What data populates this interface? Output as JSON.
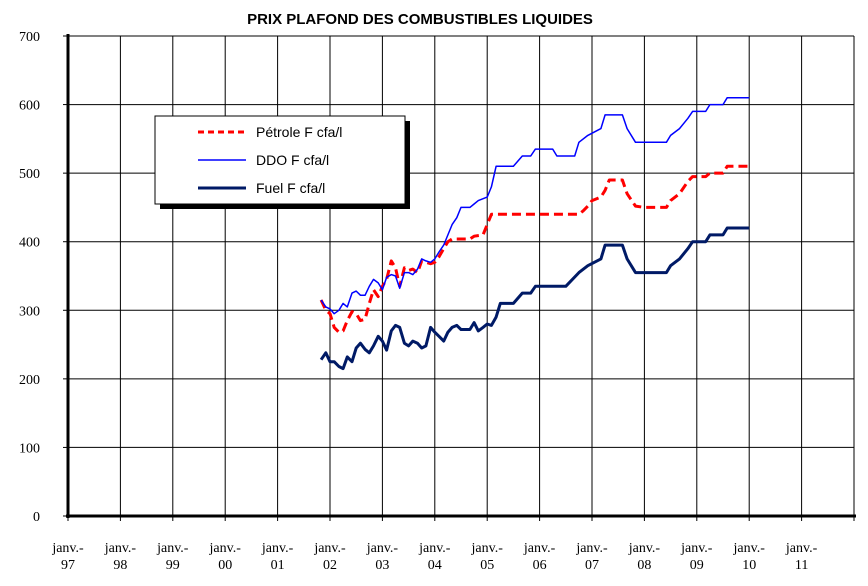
{
  "chart_data": {
    "type": "line",
    "title": "PRIX PLAFOND DES COMBUSTIBLES LIQUIDES",
    "xlabel": "",
    "ylabel": "",
    "ylim": [
      0,
      700
    ],
    "xlim": [
      1997.0,
      2012.0
    ],
    "yticks": [
      0,
      100,
      200,
      300,
      400,
      500,
      600,
      700
    ],
    "xtick_labels": [
      {
        "t": 1997.0,
        "line1": "janv.-",
        "line2": "97"
      },
      {
        "t": 1998.0,
        "line1": "janv.-",
        "line2": "98"
      },
      {
        "t": 1999.0,
        "line1": "janv.-",
        "line2": "99"
      },
      {
        "t": 2000.0,
        "line1": "janv.-",
        "line2": "00"
      },
      {
        "t": 2001.0,
        "line1": "janv.-",
        "line2": "01"
      },
      {
        "t": 2002.0,
        "line1": "janv.-",
        "line2": "02"
      },
      {
        "t": 2003.0,
        "line1": "janv.-",
        "line2": "03"
      },
      {
        "t": 2004.0,
        "line1": "janv.-",
        "line2": "04"
      },
      {
        "t": 2005.0,
        "line1": "janv.-",
        "line2": "05"
      },
      {
        "t": 2006.0,
        "line1": "janv.-",
        "line2": "06"
      },
      {
        "t": 2007.0,
        "line1": "janv.-",
        "line2": "07"
      },
      {
        "t": 2008.0,
        "line1": "janv.-",
        "line2": "08"
      },
      {
        "t": 2009.0,
        "line1": "janv.-",
        "line2": "09"
      },
      {
        "t": 2010.0,
        "line1": "janv.-",
        "line2": "10"
      },
      {
        "t": 2011.0,
        "line1": "janv.-",
        "line2": "11"
      }
    ],
    "grid": true,
    "legend_position": "top-left",
    "series": [
      {
        "name": "Pétrole F cfa/l",
        "color": "#ff0000",
        "style": "dashed",
        "points": [
          [
            2001.83,
            315
          ],
          [
            2001.92,
            300
          ],
          [
            2002.0,
            295
          ],
          [
            2002.08,
            275
          ],
          [
            2002.17,
            268
          ],
          [
            2002.25,
            270
          ],
          [
            2002.33,
            285
          ],
          [
            2002.42,
            298
          ],
          [
            2002.5,
            295
          ],
          [
            2002.58,
            285
          ],
          [
            2002.67,
            287
          ],
          [
            2002.75,
            310
          ],
          [
            2002.83,
            330
          ],
          [
            2002.92,
            320
          ],
          [
            2003.0,
            335
          ],
          [
            2003.08,
            345
          ],
          [
            2003.17,
            372
          ],
          [
            2003.25,
            362
          ],
          [
            2003.33,
            335
          ],
          [
            2003.42,
            362
          ],
          [
            2003.5,
            358
          ],
          [
            2003.58,
            360
          ],
          [
            2003.67,
            355
          ],
          [
            2003.75,
            372
          ],
          [
            2003.83,
            370
          ],
          [
            2003.92,
            368
          ],
          [
            2004.0,
            370
          ],
          [
            2004.08,
            378
          ],
          [
            2004.17,
            390
          ],
          [
            2004.25,
            400
          ],
          [
            2004.33,
            404
          ],
          [
            2004.5,
            404
          ],
          [
            2004.67,
            404
          ],
          [
            2004.75,
            408
          ],
          [
            2004.92,
            410
          ],
          [
            2005.0,
            425
          ],
          [
            2005.08,
            440
          ],
          [
            2005.5,
            440
          ],
          [
            2006.0,
            440
          ],
          [
            2006.5,
            440
          ],
          [
            2006.75,
            440
          ],
          [
            2006.83,
            445
          ],
          [
            2006.92,
            452
          ],
          [
            2007.0,
            460
          ],
          [
            2007.17,
            465
          ],
          [
            2007.25,
            475
          ],
          [
            2007.33,
            490
          ],
          [
            2007.58,
            490
          ],
          [
            2007.67,
            470
          ],
          [
            2007.83,
            452
          ],
          [
            2008.0,
            450
          ],
          [
            2008.42,
            450
          ],
          [
            2008.5,
            460
          ],
          [
            2008.67,
            470
          ],
          [
            2008.83,
            488
          ],
          [
            2008.92,
            495
          ],
          [
            2009.17,
            495
          ],
          [
            2009.25,
            500
          ],
          [
            2009.5,
            500
          ],
          [
            2009.58,
            510
          ],
          [
            2010.0,
            510
          ]
        ]
      },
      {
        "name": "DDO F cfa/l",
        "color": "#0000ff",
        "style": "solid",
        "points": [
          [
            2001.83,
            315
          ],
          [
            2001.92,
            305
          ],
          [
            2002.0,
            302
          ],
          [
            2002.08,
            295
          ],
          [
            2002.17,
            300
          ],
          [
            2002.25,
            310
          ],
          [
            2002.33,
            305
          ],
          [
            2002.42,
            325
          ],
          [
            2002.5,
            328
          ],
          [
            2002.58,
            322
          ],
          [
            2002.67,
            322
          ],
          [
            2002.75,
            335
          ],
          [
            2002.83,
            345
          ],
          [
            2002.92,
            340
          ],
          [
            2003.0,
            330
          ],
          [
            2003.08,
            348
          ],
          [
            2003.17,
            352
          ],
          [
            2003.25,
            350
          ],
          [
            2003.33,
            332
          ],
          [
            2003.42,
            355
          ],
          [
            2003.5,
            355
          ],
          [
            2003.58,
            352
          ],
          [
            2003.67,
            360
          ],
          [
            2003.75,
            375
          ],
          [
            2003.83,
            372
          ],
          [
            2003.92,
            370
          ],
          [
            2004.0,
            375
          ],
          [
            2004.08,
            385
          ],
          [
            2004.17,
            395
          ],
          [
            2004.25,
            410
          ],
          [
            2004.33,
            425
          ],
          [
            2004.42,
            435
          ],
          [
            2004.5,
            450
          ],
          [
            2004.67,
            450
          ],
          [
            2004.75,
            455
          ],
          [
            2004.83,
            460
          ],
          [
            2005.0,
            465
          ],
          [
            2005.08,
            480
          ],
          [
            2005.17,
            510
          ],
          [
            2005.5,
            510
          ],
          [
            2005.67,
            525
          ],
          [
            2005.83,
            525
          ],
          [
            2005.92,
            535
          ],
          [
            2006.25,
            535
          ],
          [
            2006.33,
            525
          ],
          [
            2006.67,
            525
          ],
          [
            2006.75,
            545
          ],
          [
            2006.92,
            555
          ],
          [
            2007.17,
            565
          ],
          [
            2007.25,
            585
          ],
          [
            2007.58,
            585
          ],
          [
            2007.67,
            565
          ],
          [
            2007.83,
            545
          ],
          [
            2008.0,
            545
          ],
          [
            2008.42,
            545
          ],
          [
            2008.5,
            555
          ],
          [
            2008.67,
            565
          ],
          [
            2008.83,
            580
          ],
          [
            2008.92,
            590
          ],
          [
            2009.17,
            590
          ],
          [
            2009.25,
            600
          ],
          [
            2009.5,
            600
          ],
          [
            2009.58,
            610
          ],
          [
            2010.0,
            610
          ]
        ]
      },
      {
        "name": "Fuel F cfa/l",
        "color": "#001a66",
        "style": "solid",
        "points": [
          [
            2001.83,
            228
          ],
          [
            2001.92,
            238
          ],
          [
            2002.0,
            225
          ],
          [
            2002.08,
            225
          ],
          [
            2002.17,
            218
          ],
          [
            2002.25,
            215
          ],
          [
            2002.33,
            232
          ],
          [
            2002.42,
            225
          ],
          [
            2002.5,
            245
          ],
          [
            2002.58,
            252
          ],
          [
            2002.67,
            243
          ],
          [
            2002.75,
            238
          ],
          [
            2002.83,
            248
          ],
          [
            2002.92,
            262
          ],
          [
            2003.0,
            255
          ],
          [
            2003.08,
            242
          ],
          [
            2003.17,
            270
          ],
          [
            2003.25,
            278
          ],
          [
            2003.33,
            275
          ],
          [
            2003.42,
            252
          ],
          [
            2003.5,
            248
          ],
          [
            2003.58,
            255
          ],
          [
            2003.67,
            252
          ],
          [
            2003.75,
            245
          ],
          [
            2003.83,
            248
          ],
          [
            2003.92,
            275
          ],
          [
            2004.0,
            268
          ],
          [
            2004.08,
            262
          ],
          [
            2004.17,
            255
          ],
          [
            2004.25,
            268
          ],
          [
            2004.33,
            275
          ],
          [
            2004.42,
            278
          ],
          [
            2004.5,
            272
          ],
          [
            2004.67,
            272
          ],
          [
            2004.75,
            282
          ],
          [
            2004.83,
            270
          ],
          [
            2004.92,
            275
          ],
          [
            2005.0,
            280
          ],
          [
            2005.08,
            278
          ],
          [
            2005.17,
            290
          ],
          [
            2005.25,
            310
          ],
          [
            2005.5,
            310
          ],
          [
            2005.67,
            325
          ],
          [
            2005.83,
            325
          ],
          [
            2005.92,
            335
          ],
          [
            2006.5,
            335
          ],
          [
            2006.75,
            355
          ],
          [
            2006.92,
            365
          ],
          [
            2007.17,
            375
          ],
          [
            2007.25,
            395
          ],
          [
            2007.58,
            395
          ],
          [
            2007.67,
            375
          ],
          [
            2007.83,
            355
          ],
          [
            2008.0,
            355
          ],
          [
            2008.42,
            355
          ],
          [
            2008.5,
            365
          ],
          [
            2008.67,
            375
          ],
          [
            2008.83,
            390
          ],
          [
            2008.92,
            400
          ],
          [
            2009.17,
            400
          ],
          [
            2009.25,
            410
          ],
          [
            2009.5,
            410
          ],
          [
            2009.58,
            420
          ],
          [
            2010.0,
            420
          ]
        ]
      }
    ]
  }
}
